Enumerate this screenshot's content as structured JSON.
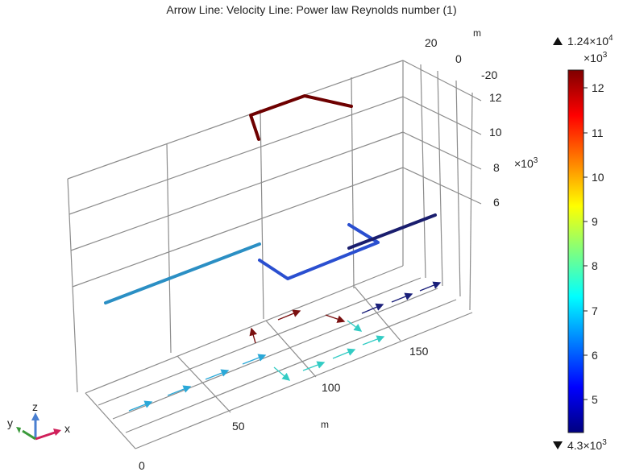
{
  "title": "Arrow Line: Velocity  Line: Power law Reynolds number (1)",
  "x_axis": {
    "unit": "m",
    "ticks": [
      "0",
      "50",
      "100",
      "150"
    ]
  },
  "y_axis": {
    "unit": "m",
    "ticks": [
      "20",
      "0",
      "-20"
    ]
  },
  "z_axis": {
    "multiplier_base": "×10",
    "multiplier_exp": "3",
    "ticks": [
      "12",
      "10",
      "8",
      "6"
    ]
  },
  "colorbar": {
    "max_label": "1.24×10",
    "max_exp": "4",
    "multiplier_base": "×10",
    "multiplier_exp": "3",
    "min_label": "4.3×10",
    "min_exp": "3",
    "ticks": [
      "12",
      "11",
      "10",
      "9",
      "8",
      "7",
      "6",
      "5"
    ],
    "colormap": [
      "#00007f",
      "#0000ff",
      "#007fff",
      "#00ffff",
      "#7fff7f",
      "#ffff00",
      "#ff7f00",
      "#ff0000",
      "#7f0000"
    ]
  },
  "triad": {
    "x_label": "x",
    "y_label": "y",
    "z_label": "z"
  },
  "colors": {
    "grid": "#8c8c8c",
    "line_dark_red": "#6e0000",
    "line_teal": "#2b8fc4",
    "line_blue": "#2a4fd0",
    "line_navy": "#1a1e6e",
    "arrow_cyan": "#2aa8d8",
    "arrow_teal": "#33ccc4",
    "arrow_dark_red": "#7a1010",
    "arrow_navy": "#1a1f7a"
  }
}
